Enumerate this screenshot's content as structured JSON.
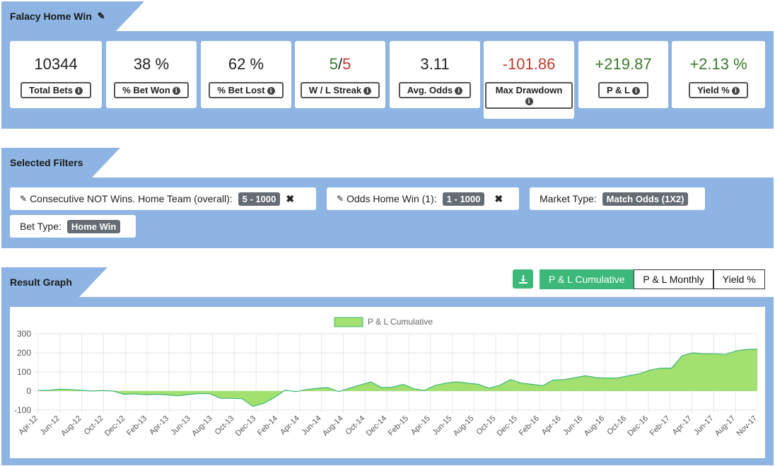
{
  "strategy": {
    "title": "Falacy Home Win"
  },
  "stats": [
    {
      "value": "10344",
      "label": "Total Bets"
    },
    {
      "value": "38 %",
      "label": "% Bet Won"
    },
    {
      "value": "62 %",
      "label": "% Bet Lost"
    },
    {
      "value_win": "5",
      "value_sep": "/",
      "value_loss": "5",
      "label": "W / L Streak"
    },
    {
      "value": "3.11",
      "label": "Avg. Odds"
    },
    {
      "value": "-101.86",
      "label": "Max Drawdown"
    },
    {
      "value": "+219.87",
      "label": "P & L"
    },
    {
      "value": "+2.13 %",
      "label": "Yield %"
    }
  ],
  "filters_section": {
    "title": "Selected Filters"
  },
  "filters": [
    {
      "label": "Consecutive NOT Wins. Home Team (overall):",
      "value": "5 - 1000"
    },
    {
      "label": "Odds Home Win (1):",
      "value": "1 - 1000"
    },
    {
      "label": "Market Type:",
      "value": "Match Odds (1X2)"
    },
    {
      "label": "Bet Type:",
      "value": "Home Win"
    }
  ],
  "result_section": {
    "title": "Result Graph"
  },
  "result_buttons": {
    "cumulative": "P & L Cumulative",
    "monthly": "P & L Monthly",
    "yield": "Yield %"
  },
  "colors": {
    "panel": "#8db4e2",
    "accent": "#3cb878",
    "area_fill": "#a2e06f",
    "area_line": "#3cb878"
  },
  "chart_data": {
    "type": "area",
    "legend": "P & L Cumulative",
    "legend_position": "top-center",
    "ylim": [
      -100,
      300
    ],
    "yticks": [
      300,
      200,
      100,
      0,
      -100
    ],
    "grid": true,
    "x_tick_labels": [
      "Apr-12",
      "Jun-12",
      "Aug-12",
      "Oct-12",
      "Dec-12",
      "Feb-13",
      "Apr-13",
      "Jun-13",
      "Aug-13",
      "Oct-13",
      "Dec-13",
      "Feb-14",
      "Apr-14",
      "Jun-14",
      "Aug-14",
      "Oct-14",
      "Dec-14",
      "Feb-15",
      "Apr-15",
      "Jun-15",
      "Aug-15",
      "Oct-15",
      "Dec-15",
      "Feb-16",
      "Apr-16",
      "Jun-16",
      "Aug-16",
      "Oct-16",
      "Dec-16",
      "Feb-17",
      "Apr-17",
      "Jun-17",
      "Aug-17",
      "Nov-17"
    ],
    "values": [
      3,
      4,
      10,
      8,
      4,
      0,
      3,
      0,
      -17,
      -15,
      -19,
      -17,
      -20,
      -25,
      -18,
      -13,
      -14,
      -38,
      -38,
      -40,
      -80,
      -65,
      -35,
      5,
      -3,
      8,
      15,
      18,
      -3,
      15,
      32,
      48,
      18,
      20,
      35,
      12,
      3,
      30,
      42,
      48,
      42,
      35,
      15,
      30,
      60,
      42,
      35,
      28,
      58,
      60,
      70,
      80,
      70,
      68,
      68,
      80,
      90,
      110,
      120,
      120,
      185,
      200,
      195,
      195,
      192,
      210,
      218,
      220
    ]
  }
}
